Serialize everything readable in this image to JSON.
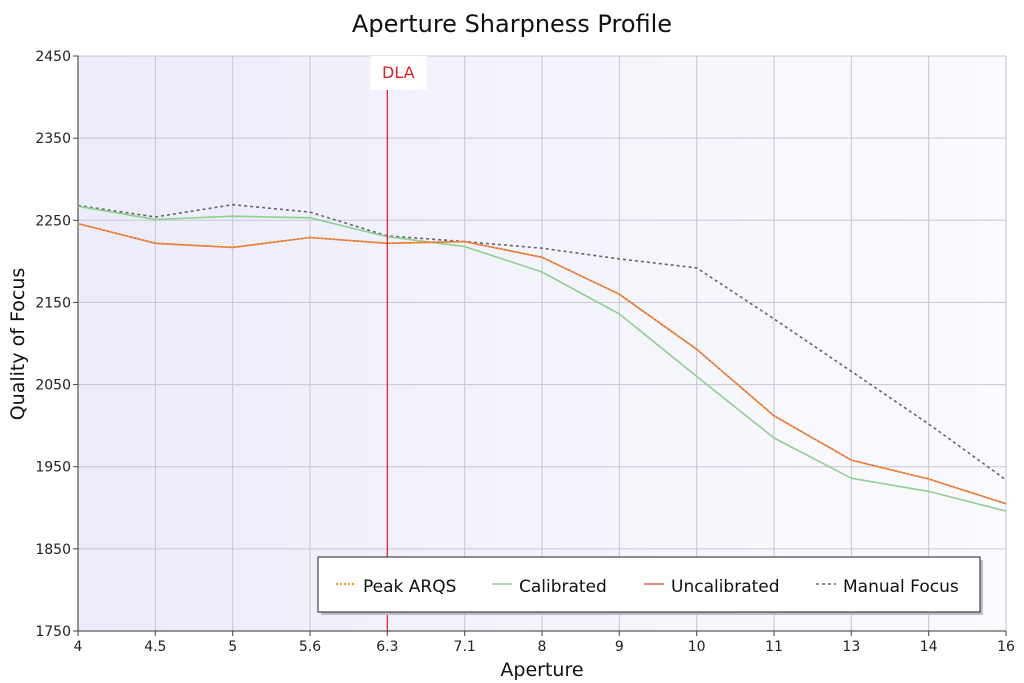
{
  "chart_data": {
    "type": "line",
    "title": "Aperture Sharpness Profile",
    "xlabel": "Aperture",
    "ylabel": "Quality of Focus",
    "categories": [
      "4",
      "4.5",
      "5",
      "5.6",
      "6.3",
      "7.1",
      "8",
      "9",
      "10",
      "11",
      "13",
      "14",
      "16"
    ],
    "ylim": [
      1750,
      2450
    ],
    "yticks": [
      1750,
      1850,
      1950,
      2050,
      2150,
      2250,
      2350,
      2450
    ],
    "grid": true,
    "legend_position": "bottom-right",
    "series": [
      {
        "name": "Peak ARQS",
        "style": "dotted",
        "color": "#f0a020",
        "values": [
          2246,
          2222,
          2217,
          2229,
          2222,
          2224,
          2205,
          2160,
          2093,
          2012,
          1958,
          1935,
          1905
        ]
      },
      {
        "name": "Calibrated",
        "style": "solid",
        "color": "#8fd08f",
        "values": [
          2267,
          2251,
          2255,
          2253,
          2230,
          2218,
          2187,
          2136,
          2060,
          1985,
          1936,
          1920,
          1896
        ]
      },
      {
        "name": "Uncalibrated",
        "style": "solid",
        "color": "#e8604a",
        "values": [
          2246,
          2222,
          2217,
          2229,
          2222,
          2224,
          2205,
          2160,
          2093,
          2012,
          1958,
          1935,
          1905
        ]
      },
      {
        "name": "Manual Focus",
        "style": "dashed",
        "color": "#666666",
        "values": [
          2268,
          2254,
          2269,
          2260,
          2231,
          2224,
          2216,
          2203,
          2192,
          2130,
          2066,
          2002,
          1934
        ]
      }
    ],
    "annotations": [
      {
        "type": "vertical-line",
        "x": "6.3",
        "label": "DLA",
        "color": "#e02020"
      }
    ]
  }
}
